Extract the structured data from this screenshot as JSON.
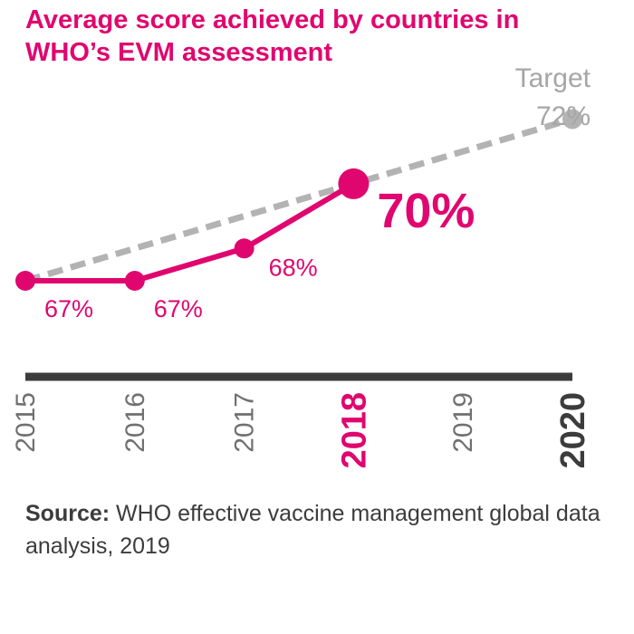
{
  "title": "Average score achieved by countries in WHO’s EVM assessment",
  "source": {
    "label": "Source:",
    "text": "WHO effective vaccine management global data analysis, 2019"
  },
  "colors": {
    "accent": "#e0066f",
    "target": "#b3b3b3",
    "target_text": "#a6a6a6",
    "axis": "#3c3c3c",
    "year_label": "#707070"
  },
  "chart_data": {
    "type": "line",
    "title": "Average score achieved by countries in WHO’s EVM assessment",
    "xlabel": "",
    "ylabel": "",
    "x": [
      2015,
      2016,
      2017,
      2018,
      2019,
      2020
    ],
    "highlight_years": [
      2018,
      2020
    ],
    "series": [
      {
        "style": "solid",
        "points": [
          {
            "x": 2015,
            "y": 67,
            "label": "67%"
          },
          {
            "x": 2016,
            "y": 67,
            "label": "67%"
          },
          {
            "x": 2017,
            "y": 68,
            "label": "68%"
          },
          {
            "x": 2018,
            "y": 70,
            "label": "70%"
          }
        ]
      },
      {
        "name": "Target",
        "style": "dashed",
        "points": [
          {
            "x": 2015,
            "y": 67
          },
          {
            "x": 2020,
            "y": 72,
            "label": "72%"
          }
        ]
      }
    ],
    "target_label": "Target",
    "target_value_label": "72%"
  }
}
